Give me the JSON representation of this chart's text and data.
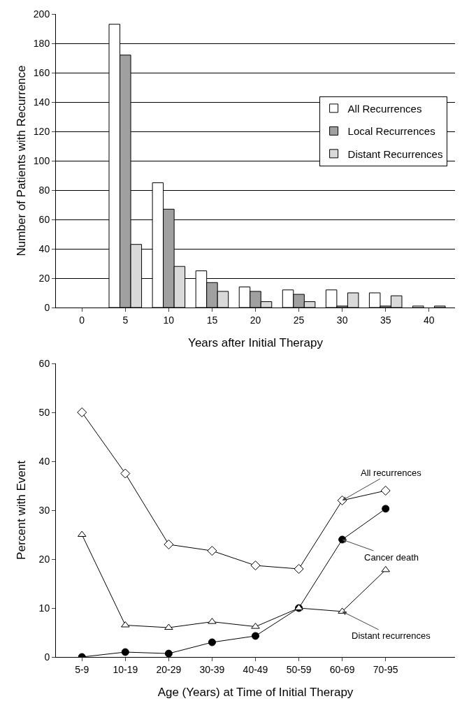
{
  "chart_data": [
    {
      "type": "bar",
      "xlabel": "Years after Initial Therapy",
      "ylabel": "Number of Patients with Recurrence",
      "categories": [
        "0",
        "5",
        "10",
        "15",
        "20",
        "25",
        "30",
        "35",
        "40"
      ],
      "series": [
        {
          "name": "All Recurrences",
          "color": "#ffffff",
          "values": [
            0,
            193,
            85,
            25,
            14,
            12,
            12,
            10,
            1
          ]
        },
        {
          "name": "Local Recurrences",
          "color": "#a0a0a0",
          "values": [
            0,
            172,
            67,
            17,
            11,
            9,
            1,
            1,
            0
          ]
        },
        {
          "name": "Distant Recurrences",
          "color": "#d9d9d9",
          "values": [
            0,
            43,
            28,
            11,
            4,
            4,
            10,
            8,
            1
          ]
        }
      ],
      "ylim": [
        0,
        200
      ],
      "yticks": [
        0,
        20,
        40,
        60,
        80,
        100,
        120,
        140,
        160,
        180,
        200
      ],
      "grid": "y",
      "legend": "top right"
    },
    {
      "type": "line",
      "xlabel": "Age (Years) at Time of Initial Therapy",
      "ylabel": "Percent with Event",
      "categories": [
        "5-9",
        "10-19",
        "20-29",
        "30-39",
        "40-49",
        "50-59",
        "60-69",
        "70-95"
      ],
      "series": [
        {
          "color": "#000000",
          "marker": "diamond",
          "values": [
            50,
            37.5,
            23,
            21.7,
            18.7,
            18,
            32,
            34
          ]
        },
        {
          "color": "#000000",
          "marker": "circle",
          "values": [
            0,
            1,
            0.7,
            3,
            4.3,
            10,
            24,
            30.3
          ]
        },
        {
          "color": "#000000",
          "marker": "triangle",
          "values": [
            25,
            6.5,
            6,
            7.2,
            6.2,
            10,
            9.3,
            17.8
          ]
        }
      ],
      "ylim": [
        0,
        60
      ],
      "yticks": [
        0,
        10,
        20,
        30,
        40,
        50,
        60
      ],
      "grid": false,
      "legend": false,
      "annotations": [
        {
          "text": "All recurrences",
          "x": "60-69",
          "y": 32
        },
        {
          "text": "Cancer death",
          "x": "60-69",
          "y": 24
        },
        {
          "text": "Distant recurrences",
          "x": "60-69",
          "y": 9.3
        }
      ]
    }
  ]
}
